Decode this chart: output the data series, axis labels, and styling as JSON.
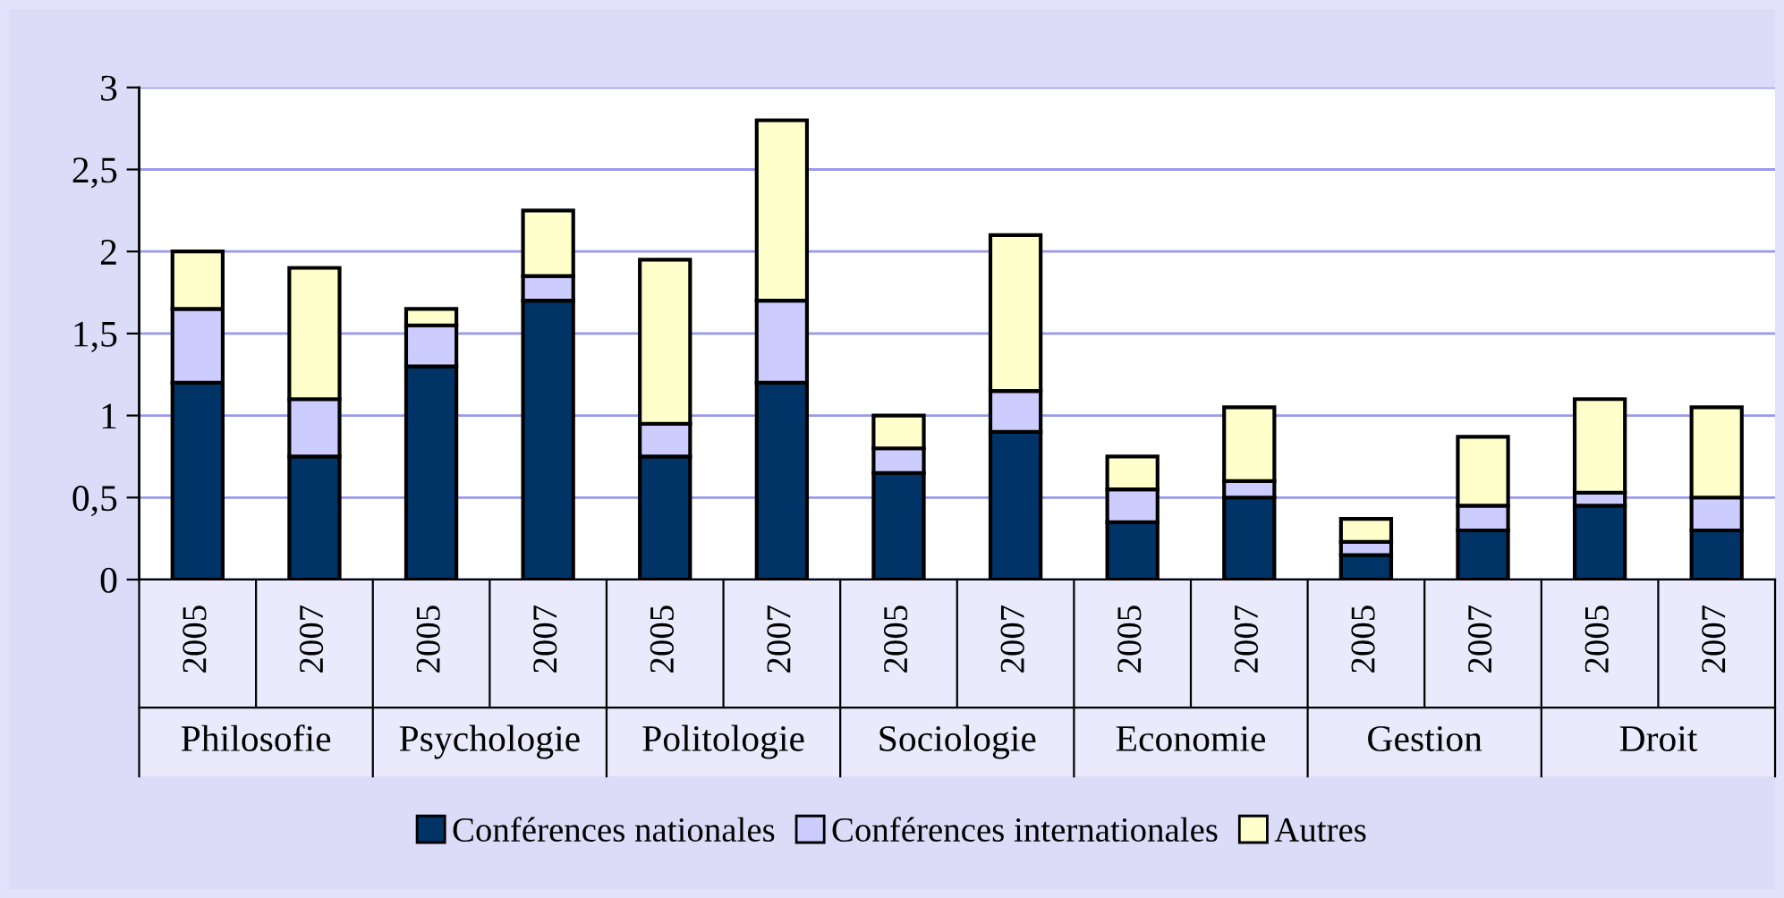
{
  "chart_data": {
    "type": "bar",
    "stacked": true,
    "categories": [
      "2005",
      "2007",
      "2005",
      "2007",
      "2005",
      "2007",
      "2005",
      "2007",
      "2005",
      "2007",
      "2005",
      "2007",
      "2005",
      "2007"
    ],
    "annotations": [
      "Philosofie",
      "Psychologie",
      "Politologie",
      "Sociologie",
      "Economie",
      "Gestion",
      "Droit"
    ],
    "series": [
      {
        "name": "Conférences nationales",
        "color": "#003366",
        "values": [
          1.2,
          0.75,
          1.3,
          1.7,
          0.75,
          1.2,
          0.65,
          0.9,
          0.35,
          0.5,
          0.15,
          0.3,
          0.45,
          0.3
        ]
      },
      {
        "name": "Conférences internationales",
        "color": "#ccccff",
        "values": [
          0.45,
          0.35,
          0.25,
          0.15,
          0.2,
          0.5,
          0.15,
          0.25,
          0.2,
          0.1,
          0.08,
          0.15,
          0.08,
          0.2
        ]
      },
      {
        "name": "Autres",
        "color": "#ffffcc",
        "values": [
          0.35,
          0.8,
          0.1,
          0.4,
          1.0,
          1.1,
          0.2,
          0.95,
          0.2,
          0.45,
          0.14,
          0.42,
          0.57,
          0.55
        ]
      }
    ],
    "ylim": [
      0,
      3
    ],
    "yticks": [
      0,
      {
        "value": 0.5,
        "label": "0,5"
      },
      1,
      {
        "value": 1.5,
        "label": "1,5"
      },
      2,
      {
        "value": 2.5,
        "label": "2,5"
      },
      3
    ],
    "grid": "y",
    "legend": "bottom"
  }
}
